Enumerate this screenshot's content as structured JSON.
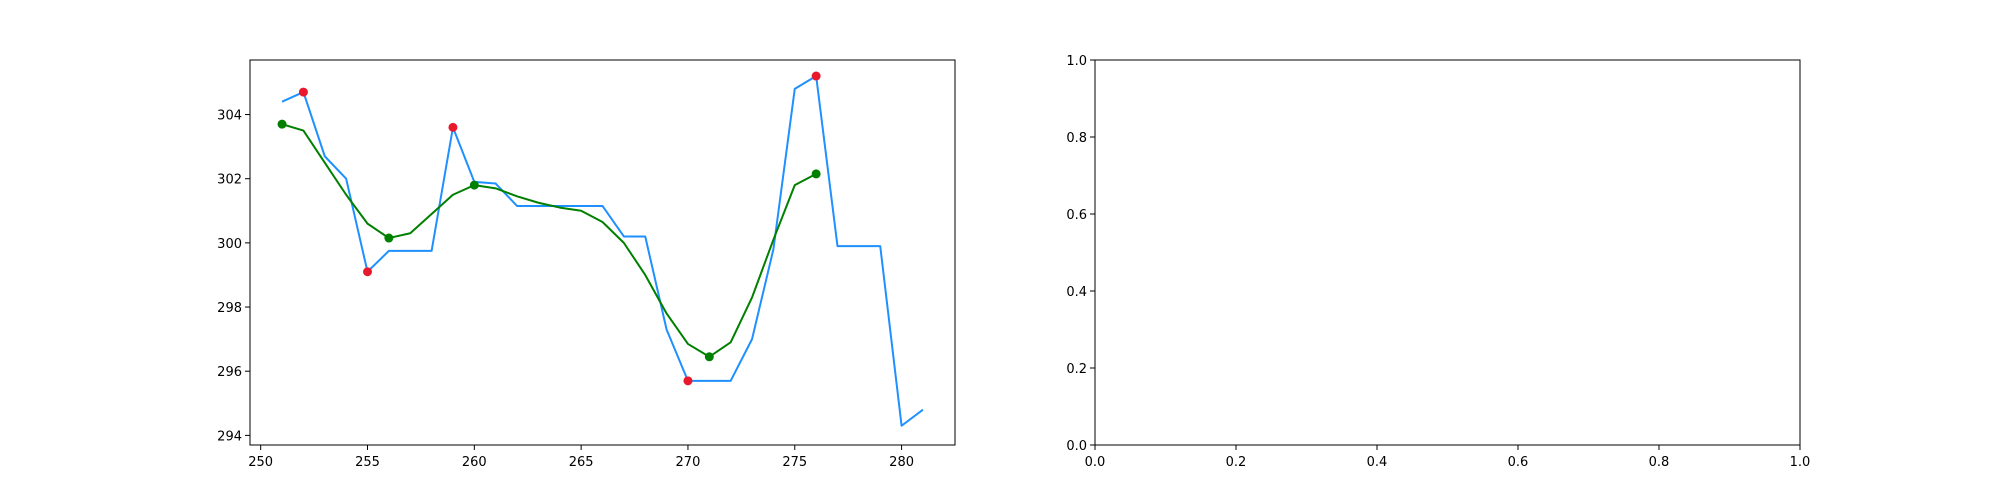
{
  "chart_data": [
    {
      "type": "line",
      "title": "",
      "xlabel": "",
      "ylabel": "",
      "xlim": [
        249.5,
        282.5
      ],
      "ylim": [
        293.7,
        305.7
      ],
      "x_ticks": [
        250,
        255,
        260,
        265,
        270,
        275,
        280
      ],
      "y_ticks": [
        294,
        296,
        298,
        300,
        302,
        304
      ],
      "grid": false,
      "legend": "none",
      "series": [
        {
          "kind": "line",
          "color": "#1e90ff",
          "x": [
            251,
            252,
            253,
            254,
            255,
            256,
            257,
            258,
            259,
            260,
            261,
            262,
            263,
            264,
            265,
            266,
            267,
            268,
            269,
            270,
            271,
            272,
            273,
            274,
            275,
            276,
            277,
            278,
            279,
            280,
            281
          ],
          "y": [
            304.4,
            304.7,
            302.7,
            302.0,
            299.1,
            299.75,
            299.75,
            299.75,
            303.6,
            301.9,
            301.85,
            301.15,
            301.15,
            301.15,
            301.15,
            301.15,
            300.2,
            300.2,
            297.3,
            295.7,
            295.7,
            295.7,
            297.0,
            299.8,
            304.8,
            305.2,
            299.9,
            299.9,
            299.9,
            294.3,
            294.8
          ]
        },
        {
          "kind": "line",
          "color": "#008000",
          "x": [
            251,
            252,
            253,
            254,
            255,
            256,
            257,
            258,
            259,
            260,
            261,
            262,
            263,
            264,
            265,
            266,
            267,
            268,
            269,
            270,
            271,
            272,
            273,
            274,
            275,
            276
          ],
          "y": [
            303.7,
            303.5,
            302.5,
            301.5,
            300.6,
            300.15,
            300.3,
            300.9,
            301.5,
            301.8,
            301.7,
            301.45,
            301.25,
            301.1,
            301.0,
            300.65,
            300.0,
            299.0,
            297.8,
            296.85,
            296.45,
            296.9,
            298.3,
            300.1,
            301.8,
            302.15
          ]
        },
        {
          "kind": "scatter",
          "color": "#e8192c",
          "x": [
            252,
            255,
            259,
            270,
            276
          ],
          "y": [
            304.7,
            299.1,
            303.6,
            295.7,
            305.2
          ]
        },
        {
          "kind": "scatter",
          "color": "#008000",
          "x": [
            251,
            256,
            260,
            271,
            276
          ],
          "y": [
            303.7,
            300.15,
            301.8,
            296.45,
            302.15
          ]
        }
      ]
    },
    {
      "type": "line",
      "title": "",
      "xlabel": "",
      "ylabel": "",
      "xlim": [
        0.0,
        1.0
      ],
      "ylim": [
        0.0,
        1.0
      ],
      "x_ticks": [
        0.0,
        0.2,
        0.4,
        0.6,
        0.8,
        1.0
      ],
      "y_ticks": [
        0.0,
        0.2,
        0.4,
        0.6,
        0.8,
        1.0
      ],
      "tick_format": "0.0",
      "grid": false,
      "legend": "none",
      "series": []
    }
  ]
}
